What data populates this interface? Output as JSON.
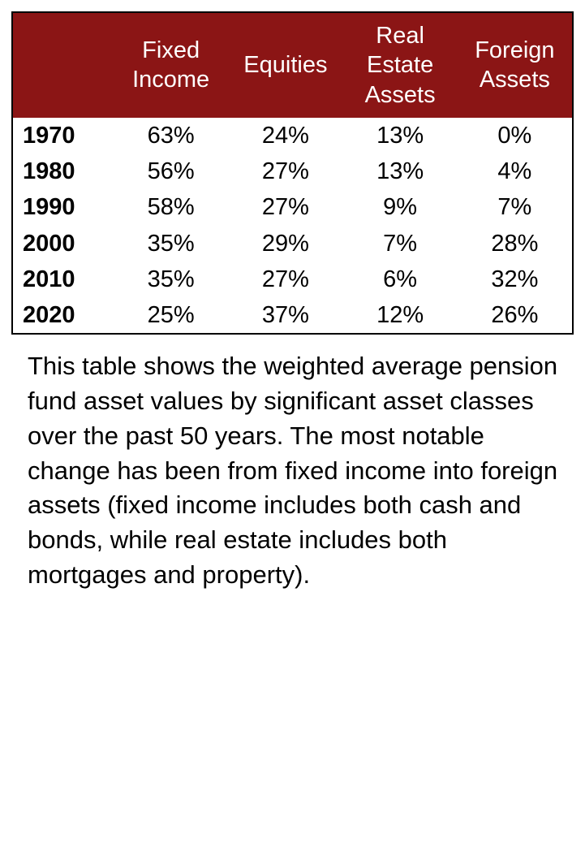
{
  "table": {
    "type": "table",
    "header_bg": "#8b1515",
    "header_fg": "#ffffff",
    "border_color": "#000000",
    "font_family": "Avenir Next",
    "header_fontsize": 29,
    "cell_fontsize": 29,
    "year_col_bold": true,
    "columns": [
      "",
      "Fixed Income",
      "Equities",
      "Real Estate Assets",
      "Foreign Assets"
    ],
    "column_widths_pct": [
      18,
      20.5,
      20.5,
      20.5,
      20.5
    ],
    "rows": [
      [
        "1970",
        "63%",
        "24%",
        "13%",
        "0%"
      ],
      [
        "1980",
        "56%",
        "27%",
        "13%",
        "4%"
      ],
      [
        "1990",
        "58%",
        "27%",
        "9%",
        "7%"
      ],
      [
        "2000",
        "35%",
        "29%",
        "7%",
        "28%"
      ],
      [
        "2010",
        "35%",
        "27%",
        "6%",
        "32%"
      ],
      [
        "2020",
        "25%",
        "37%",
        "12%",
        "26%"
      ]
    ]
  },
  "caption": {
    "text": "This table shows the weighted av­erage pension fund asset values by significant asset classes over the past 50 years. The most notable change has been from fixed in­come into foreign assets (fixed in­come includes both cash and bonds, while real estate includes both mortgages and property).",
    "fontsize": 31,
    "color": "#000000"
  }
}
